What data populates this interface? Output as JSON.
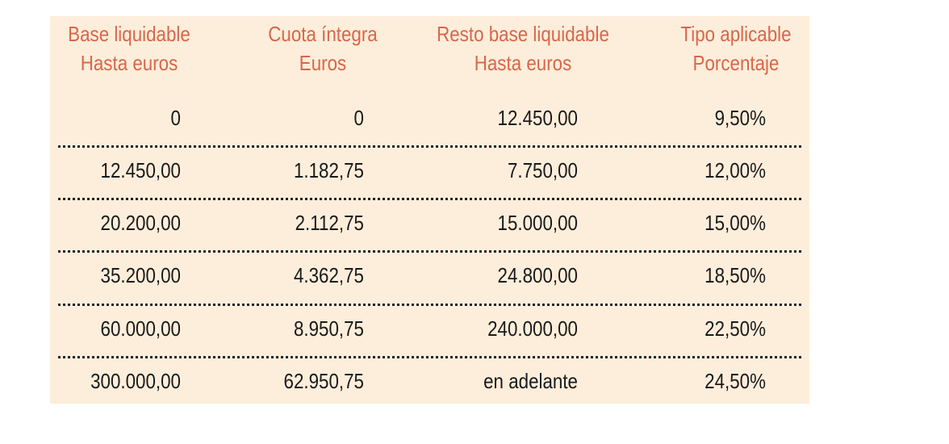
{
  "table": {
    "columns": [
      {
        "line1": "Base liquidable",
        "line2": "Hasta euros"
      },
      {
        "line1": "Cuota íntegra",
        "line2": "Euros"
      },
      {
        "line1": "Resto base liquidable",
        "line2": "Hasta euros"
      },
      {
        "line1": "Tipo aplicable",
        "line2": "Porcentaje"
      }
    ],
    "rows": [
      [
        "0",
        "0",
        "12.450,00",
        "9,50%"
      ],
      [
        "12.450,00",
        "1.182,75",
        "7.750,00",
        "12,00%"
      ],
      [
        "20.200,00",
        "2.112,75",
        "15.000,00",
        "15,00%"
      ],
      [
        "35.200,00",
        "4.362,75",
        "24.800,00",
        "18,50%"
      ],
      [
        "60.000,00",
        "8.950,75",
        "240.000,00",
        "22,50%"
      ],
      [
        "300.000,00",
        "62.950,75",
        "en adelante",
        "24,50%"
      ]
    ],
    "colors": {
      "header": "#d9664a",
      "background": "#fdeedb"
    }
  }
}
